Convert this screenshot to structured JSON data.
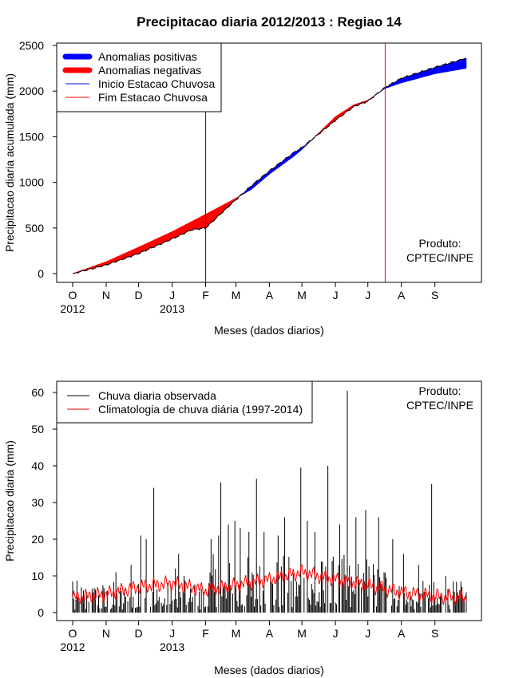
{
  "colors": {
    "positive": "#0000ff",
    "negative": "#ff0000",
    "start_line": "#0000ff",
    "end_line": "#ff0000",
    "observed": "#000000",
    "climatology": "#ff0000"
  },
  "chart_data": [
    {
      "type": "area",
      "title": "Precipitacao diaria 2012/2013 : Regiao 14",
      "xlabel": "Meses (dados diarios)",
      "ylabel": "Precipitacao diaria acumulada (mm)",
      "ylim": [
        0,
        2500
      ],
      "yticks": [
        0,
        500,
        1000,
        1500,
        2000,
        2500
      ],
      "month_labels": [
        "O",
        "N",
        "D",
        "J",
        "F",
        "M",
        "A",
        "M",
        "J",
        "J",
        "A",
        "S"
      ],
      "month_days": [
        0,
        31,
        61,
        92,
        123,
        151,
        182,
        212,
        243,
        273,
        304,
        335
      ],
      "year_labels": [
        {
          "text": "2012",
          "day": 0
        },
        {
          "text": "2013",
          "day": 92
        }
      ],
      "legend": [
        "Anomalias positivas",
        "Anomalias negativas",
        "Inicio Estacao Chuvosa",
        "Fim Estacao Chuvosa"
      ],
      "annotation": [
        "Produto:",
        "CPTEC/INPE"
      ],
      "rainy_season_start_day": 123,
      "rainy_season_end_day": 289,
      "observed_cumulative": {
        "day": [
          0,
          31,
          61,
          92,
          110,
          123,
          150,
          165,
          182,
          205,
          212,
          243,
          260,
          273,
          289,
          304,
          335,
          364
        ],
        "value": [
          0,
          95,
          220,
          380,
          480,
          500,
          800,
          960,
          1125,
          1330,
          1380,
          1680,
          1830,
          1890,
          2040,
          2140,
          2260,
          2360
        ]
      },
      "climatology_cumulative": {
        "day": [
          0,
          31,
          61,
          92,
          110,
          123,
          150,
          165,
          182,
          205,
          212,
          243,
          260,
          273,
          289,
          304,
          335,
          364
        ],
        "value": [
          0,
          130,
          290,
          460,
          570,
          650,
          820,
          920,
          1090,
          1290,
          1360,
          1720,
          1850,
          1900,
          2030,
          2090,
          2190,
          2250
        ]
      }
    },
    {
      "type": "bar",
      "title": "",
      "xlabel": "Meses (dados diarios)",
      "ylabel": "Precipitacao diaria (mm)",
      "ylim": [
        0,
        62
      ],
      "yticks": [
        0,
        10,
        20,
        30,
        40,
        50,
        60
      ],
      "month_labels": [
        "O",
        "N",
        "D",
        "J",
        "F",
        "M",
        "A",
        "M",
        "J",
        "J",
        "A",
        "S"
      ],
      "month_days": [
        0,
        31,
        61,
        92,
        123,
        151,
        182,
        212,
        243,
        273,
        304,
        335
      ],
      "year_labels": [
        {
          "text": "2012",
          "day": 0
        },
        {
          "text": "2013",
          "day": 92
        }
      ],
      "legend": [
        "Chuva diaria observada",
        "Climatologia de chuva diária (1997-2014)"
      ],
      "annotation": [
        "Produto:",
        "CPTEC/INPE"
      ],
      "observed_peaks": [
        {
          "day": 0,
          "value": 8.5
        },
        {
          "day": 18,
          "value": 6.5
        },
        {
          "day": 40,
          "value": 11
        },
        {
          "day": 54,
          "value": 13
        },
        {
          "day": 63,
          "value": 21
        },
        {
          "day": 68,
          "value": 20
        },
        {
          "day": 75,
          "value": 34
        },
        {
          "day": 95,
          "value": 12
        },
        {
          "day": 98,
          "value": 16
        },
        {
          "day": 103,
          "value": 10
        },
        {
          "day": 128,
          "value": 20
        },
        {
          "day": 135,
          "value": 21
        },
        {
          "day": 137,
          "value": 35.5
        },
        {
          "day": 144,
          "value": 24
        },
        {
          "day": 150,
          "value": 25
        },
        {
          "day": 155,
          "value": 23
        },
        {
          "day": 163,
          "value": 22
        },
        {
          "day": 170,
          "value": 36.5
        },
        {
          "day": 177,
          "value": 22
        },
        {
          "day": 190,
          "value": 21
        },
        {
          "day": 196,
          "value": 26
        },
        {
          "day": 211,
          "value": 39.5
        },
        {
          "day": 217,
          "value": 25
        },
        {
          "day": 224,
          "value": 22
        },
        {
          "day": 236,
          "value": 40
        },
        {
          "day": 247,
          "value": 24
        },
        {
          "day": 254,
          "value": 60.5
        },
        {
          "day": 262,
          "value": 26
        },
        {
          "day": 271,
          "value": 28
        },
        {
          "day": 283,
          "value": 26
        },
        {
          "day": 296,
          "value": 20
        },
        {
          "day": 306,
          "value": 16
        },
        {
          "day": 320,
          "value": 13
        },
        {
          "day": 332,
          "value": 35
        },
        {
          "day": 345,
          "value": 10
        },
        {
          "day": 360,
          "value": 7
        }
      ],
      "climatology_profile": {
        "day": [
          0,
          31,
          61,
          92,
          123,
          151,
          182,
          212,
          243,
          273,
          304,
          335,
          364
        ],
        "value": [
          4,
          5,
          7,
          8,
          6,
          7.5,
          9,
          11,
          9,
          7.5,
          5.5,
          4.5,
          4
        ]
      }
    }
  ]
}
